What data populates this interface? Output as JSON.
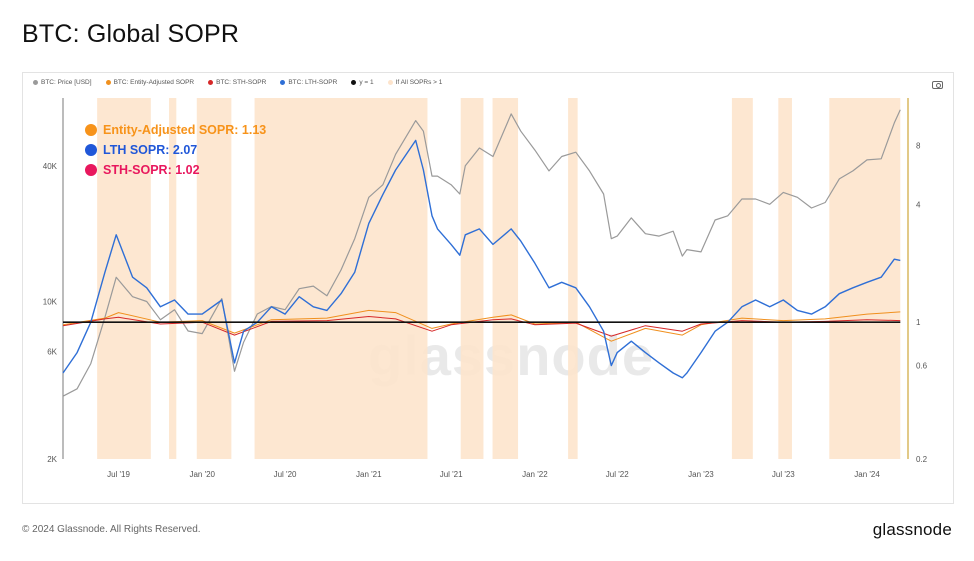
{
  "title": "BTC: Global SOPR",
  "footer": {
    "copyright": "© 2024 Glassnode. All Rights Reserved.",
    "brand": "glassnode"
  },
  "watermark": "glassnode",
  "legend": [
    {
      "label": "BTC: Price [USD]",
      "color": "#9a9a9a"
    },
    {
      "label": "BTC: Entity-Adjusted SOPR",
      "color": "#f0901e"
    },
    {
      "label": "BTC: STH-SOPR",
      "color": "#d62828"
    },
    {
      "label": "BTC: LTH-SOPR",
      "color": "#2f6fd6"
    },
    {
      "label": "y = 1",
      "color": "#111111"
    },
    {
      "label": "If All SOPRs > 1",
      "color": "#fde4cc"
    }
  ],
  "annotations": [
    {
      "label": "Entity-Adjusted SOPR: 1.13",
      "color": "#f7931a"
    },
    {
      "label": "LTH SOPR: 2.07",
      "color": "#2057d8"
    },
    {
      "label": "STH-SOPR: 1.02",
      "color": "#e8175d"
    }
  ],
  "chart_data": {
    "type": "line",
    "title": "BTC: Global SOPR",
    "x_ticks": [
      "Jul '19",
      "Jan '20",
      "Jul '20",
      "Jan '21",
      "Jul '21",
      "Jan '22",
      "Jul '22",
      "Jan '23",
      "Jul '23",
      "Jan '24"
    ],
    "x_range": [
      "2019-03-01",
      "2024-03-31"
    ],
    "y_left": {
      "scale": "log",
      "range": [
        2000,
        80000
      ],
      "ticks": [
        {
          "v": 2000,
          "label": "2K"
        },
        {
          "v": 6000,
          "label": "6K"
        },
        {
          "v": 10000,
          "label": "10K"
        },
        {
          "v": 40000,
          "label": "40K"
        }
      ]
    },
    "y_right": {
      "scale": "log",
      "range": [
        0.2,
        14
      ],
      "ticks": [
        {
          "v": 0.2,
          "label": "0.2"
        },
        {
          "v": 0.6,
          "label": "0.6"
        },
        {
          "v": 1,
          "label": "1"
        },
        {
          "v": 4,
          "label": "4"
        },
        {
          "v": 8,
          "label": "8"
        }
      ]
    },
    "series": [
      {
        "name": "BTC: Price [USD]",
        "axis": "left",
        "color": "#9a9a9a",
        "x": [
          "2019-03-01",
          "2019-04-01",
          "2019-05-01",
          "2019-06-01",
          "2019-06-26",
          "2019-08-01",
          "2019-09-01",
          "2019-10-01",
          "2019-11-01",
          "2019-12-01",
          "2020-01-01",
          "2020-02-13",
          "2020-03-12",
          "2020-04-01",
          "2020-05-01",
          "2020-06-01",
          "2020-07-01",
          "2020-08-01",
          "2020-09-01",
          "2020-10-01",
          "2020-11-01",
          "2020-12-01",
          "2021-01-01",
          "2021-02-01",
          "2021-03-01",
          "2021-04-14",
          "2021-05-01",
          "2021-05-20",
          "2021-06-01",
          "2021-07-01",
          "2021-07-20",
          "2021-08-01",
          "2021-09-01",
          "2021-10-01",
          "2021-11-10",
          "2021-12-01",
          "2022-01-01",
          "2022-02-01",
          "2022-03-01",
          "2022-04-01",
          "2022-05-01",
          "2022-06-01",
          "2022-06-18",
          "2022-07-01",
          "2022-08-01",
          "2022-09-01",
          "2022-10-01",
          "2022-11-01",
          "2022-11-21",
          "2022-12-01",
          "2023-01-01",
          "2023-02-01",
          "2023-03-01",
          "2023-04-01",
          "2023-05-01",
          "2023-06-01",
          "2023-07-01",
          "2023-08-01",
          "2023-09-01",
          "2023-10-01",
          "2023-11-01",
          "2023-12-01",
          "2024-01-01",
          "2024-02-01",
          "2024-03-01",
          "2024-03-14"
        ],
        "values": [
          3800,
          4100,
          5300,
          8500,
          12800,
          10500,
          10000,
          8300,
          9200,
          7400,
          7200,
          10300,
          4900,
          6600,
          8800,
          9500,
          9200,
          11400,
          11700,
          10600,
          13800,
          19000,
          29000,
          33000,
          45000,
          63500,
          57000,
          36000,
          36000,
          33000,
          30000,
          40000,
          48000,
          44000,
          68000,
          57000,
          47000,
          38000,
          44000,
          46000,
          38000,
          30000,
          19000,
          19500,
          23500,
          20000,
          19500,
          20500,
          15900,
          17000,
          16600,
          23000,
          24000,
          28500,
          28500,
          27000,
          30500,
          29000,
          26000,
          27500,
          35000,
          38000,
          42500,
          43000,
          62000,
          71000
        ]
      },
      {
        "name": "BTC: Entity-Adjusted SOPR",
        "axis": "right",
        "color": "#f0901e",
        "x": [
          "2019-03-01",
          "2019-06-01",
          "2019-07-01",
          "2019-10-01",
          "2020-01-01",
          "2020-03-12",
          "2020-06-01",
          "2020-10-01",
          "2021-01-01",
          "2021-03-01",
          "2021-05-20",
          "2021-07-01",
          "2021-10-01",
          "2021-11-10",
          "2022-01-01",
          "2022-04-01",
          "2022-06-18",
          "2022-09-01",
          "2022-11-21",
          "2023-01-01",
          "2023-04-01",
          "2023-07-01",
          "2023-10-01",
          "2024-01-01",
          "2024-03-14"
        ],
        "values": [
          0.97,
          1.05,
          1.12,
          1.0,
          1.02,
          0.88,
          1.03,
          1.05,
          1.15,
          1.12,
          0.93,
          0.98,
          1.06,
          1.09,
          0.98,
          1.0,
          0.8,
          0.93,
          0.86,
          0.97,
          1.05,
          1.02,
          1.04,
          1.1,
          1.13
        ]
      },
      {
        "name": "BTC: STH-SOPR",
        "axis": "right",
        "color": "#d62828",
        "x": [
          "2019-03-01",
          "2019-06-01",
          "2019-07-01",
          "2019-10-01",
          "2020-01-01",
          "2020-03-12",
          "2020-06-01",
          "2020-10-01",
          "2021-01-01",
          "2021-03-01",
          "2021-05-20",
          "2021-07-01",
          "2021-10-01",
          "2021-11-10",
          "2022-01-01",
          "2022-04-01",
          "2022-06-18",
          "2022-09-01",
          "2022-11-21",
          "2023-01-01",
          "2023-04-01",
          "2023-07-01",
          "2023-10-01",
          "2024-01-01",
          "2024-03-14"
        ],
        "values": [
          0.96,
          1.04,
          1.06,
          0.98,
          1.0,
          0.86,
          1.01,
          1.02,
          1.07,
          1.04,
          0.9,
          0.97,
          1.03,
          1.04,
          0.97,
          0.99,
          0.85,
          0.96,
          0.9,
          0.98,
          1.02,
          1.0,
          1.01,
          1.03,
          1.02
        ]
      },
      {
        "name": "BTC: LTH-SOPR",
        "axis": "right",
        "color": "#2f6fd6",
        "x": [
          "2019-03-01",
          "2019-04-01",
          "2019-05-01",
          "2019-06-01",
          "2019-06-26",
          "2019-08-01",
          "2019-09-01",
          "2019-10-01",
          "2019-11-01",
          "2019-12-01",
          "2020-01-01",
          "2020-02-13",
          "2020-03-12",
          "2020-04-01",
          "2020-05-01",
          "2020-06-01",
          "2020-07-01",
          "2020-08-01",
          "2020-09-01",
          "2020-10-01",
          "2020-11-01",
          "2020-12-01",
          "2021-01-01",
          "2021-02-01",
          "2021-03-01",
          "2021-04-14",
          "2021-05-01",
          "2021-05-20",
          "2021-06-01",
          "2021-07-01",
          "2021-07-20",
          "2021-08-01",
          "2021-09-01",
          "2021-10-01",
          "2021-11-10",
          "2021-12-01",
          "2022-01-01",
          "2022-02-01",
          "2022-03-01",
          "2022-04-01",
          "2022-05-01",
          "2022-06-01",
          "2022-06-18",
          "2022-07-01",
          "2022-08-01",
          "2022-09-01",
          "2022-10-01",
          "2022-11-01",
          "2022-11-21",
          "2022-12-01",
          "2023-01-01",
          "2023-02-01",
          "2023-03-01",
          "2023-04-01",
          "2023-05-01",
          "2023-06-01",
          "2023-07-01",
          "2023-08-01",
          "2023-09-01",
          "2023-10-01",
          "2023-11-01",
          "2023-12-01",
          "2024-01-01",
          "2024-02-01",
          "2024-03-01",
          "2024-03-14"
        ],
        "values": [
          0.55,
          0.7,
          1.0,
          1.8,
          2.8,
          1.7,
          1.5,
          1.2,
          1.3,
          1.1,
          1.1,
          1.3,
          0.62,
          0.9,
          1.0,
          1.2,
          1.1,
          1.35,
          1.2,
          1.15,
          1.4,
          1.8,
          3.2,
          4.5,
          6.0,
          8.5,
          6.0,
          3.5,
          3.0,
          2.5,
          2.2,
          2.8,
          3.0,
          2.5,
          3.0,
          2.6,
          2.0,
          1.5,
          1.6,
          1.5,
          1.2,
          0.9,
          0.6,
          0.7,
          0.8,
          0.7,
          0.62,
          0.55,
          0.52,
          0.55,
          0.7,
          0.9,
          1.0,
          1.2,
          1.3,
          1.2,
          1.3,
          1.15,
          1.1,
          1.2,
          1.4,
          1.5,
          1.6,
          1.7,
          2.1,
          2.07
        ]
      },
      {
        "name": "y = 1",
        "axis": "right",
        "color": "#111111",
        "x": [
          "2019-03-01",
          "2024-03-14"
        ],
        "values": [
          1,
          1
        ]
      }
    ],
    "shaded_periods": [
      {
        "start": "2019-05-15",
        "end": "2019-09-10"
      },
      {
        "start": "2019-10-20",
        "end": "2019-11-05"
      },
      {
        "start": "2019-12-20",
        "end": "2020-03-05"
      },
      {
        "start": "2020-04-25",
        "end": "2021-05-10"
      },
      {
        "start": "2021-07-22",
        "end": "2021-09-10"
      },
      {
        "start": "2021-09-30",
        "end": "2021-11-25"
      },
      {
        "start": "2022-03-15",
        "end": "2022-04-05"
      },
      {
        "start": "2023-03-10",
        "end": "2023-04-25"
      },
      {
        "start": "2023-06-20",
        "end": "2023-07-20"
      },
      {
        "start": "2023-10-10",
        "end": "2024-03-14"
      }
    ],
    "grid": false,
    "legend_position": "top-left"
  }
}
